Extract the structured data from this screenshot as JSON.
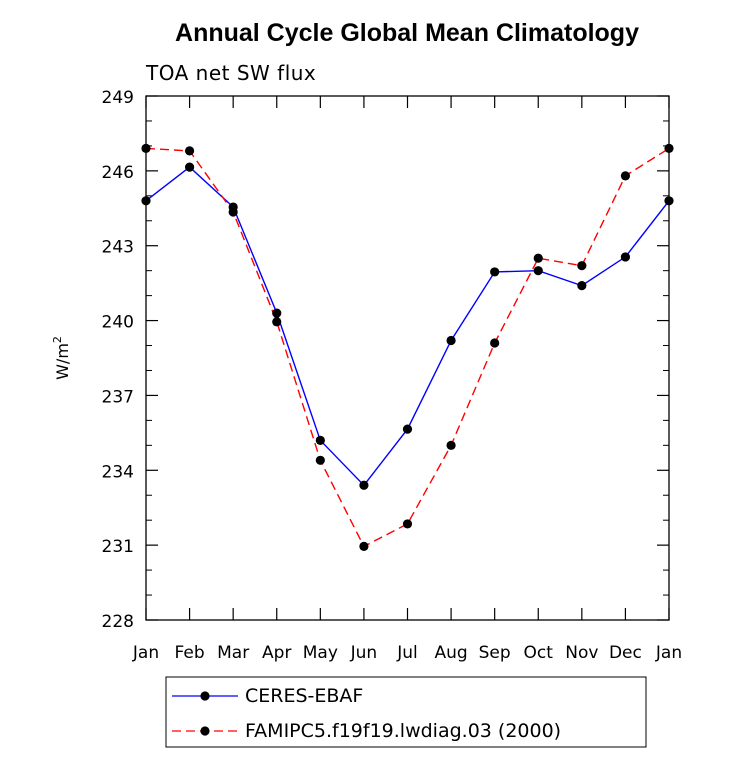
{
  "chart_data": {
    "type": "line",
    "title": "Annual Cycle Global Mean Climatology",
    "subtitle": "TOA net SW flux",
    "ylabel": "W/m",
    "ylabel_superscript": "2",
    "xlabel": "",
    "categories": [
      "Jan",
      "Feb",
      "Mar",
      "Apr",
      "May",
      "Jun",
      "Jul",
      "Aug",
      "Sep",
      "Oct",
      "Nov",
      "Dec",
      "Jan"
    ],
    "yticks": [
      228,
      231,
      234,
      237,
      240,
      243,
      246,
      249
    ],
    "ylim": [
      228,
      249
    ],
    "grid": false,
    "legend_position": "bottom",
    "series": [
      {
        "name": "CERES-EBAF",
        "color": "#0000ff",
        "line_style": "solid",
        "marker": "filled-circle",
        "values": [
          244.8,
          246.15,
          244.55,
          240.3,
          235.2,
          233.4,
          235.65,
          239.2,
          241.95,
          242.0,
          241.4,
          242.55,
          244.8
        ]
      },
      {
        "name": "FAMIPC5.f19f19.lwdiag.03 (2000)",
        "color": "#ff0000",
        "line_style": "dashed",
        "marker": "filled-circle",
        "values": [
          246.9,
          246.8,
          244.35,
          239.95,
          234.4,
          230.95,
          231.85,
          235.0,
          239.1,
          242.5,
          242.2,
          245.8,
          246.9
        ]
      }
    ]
  }
}
